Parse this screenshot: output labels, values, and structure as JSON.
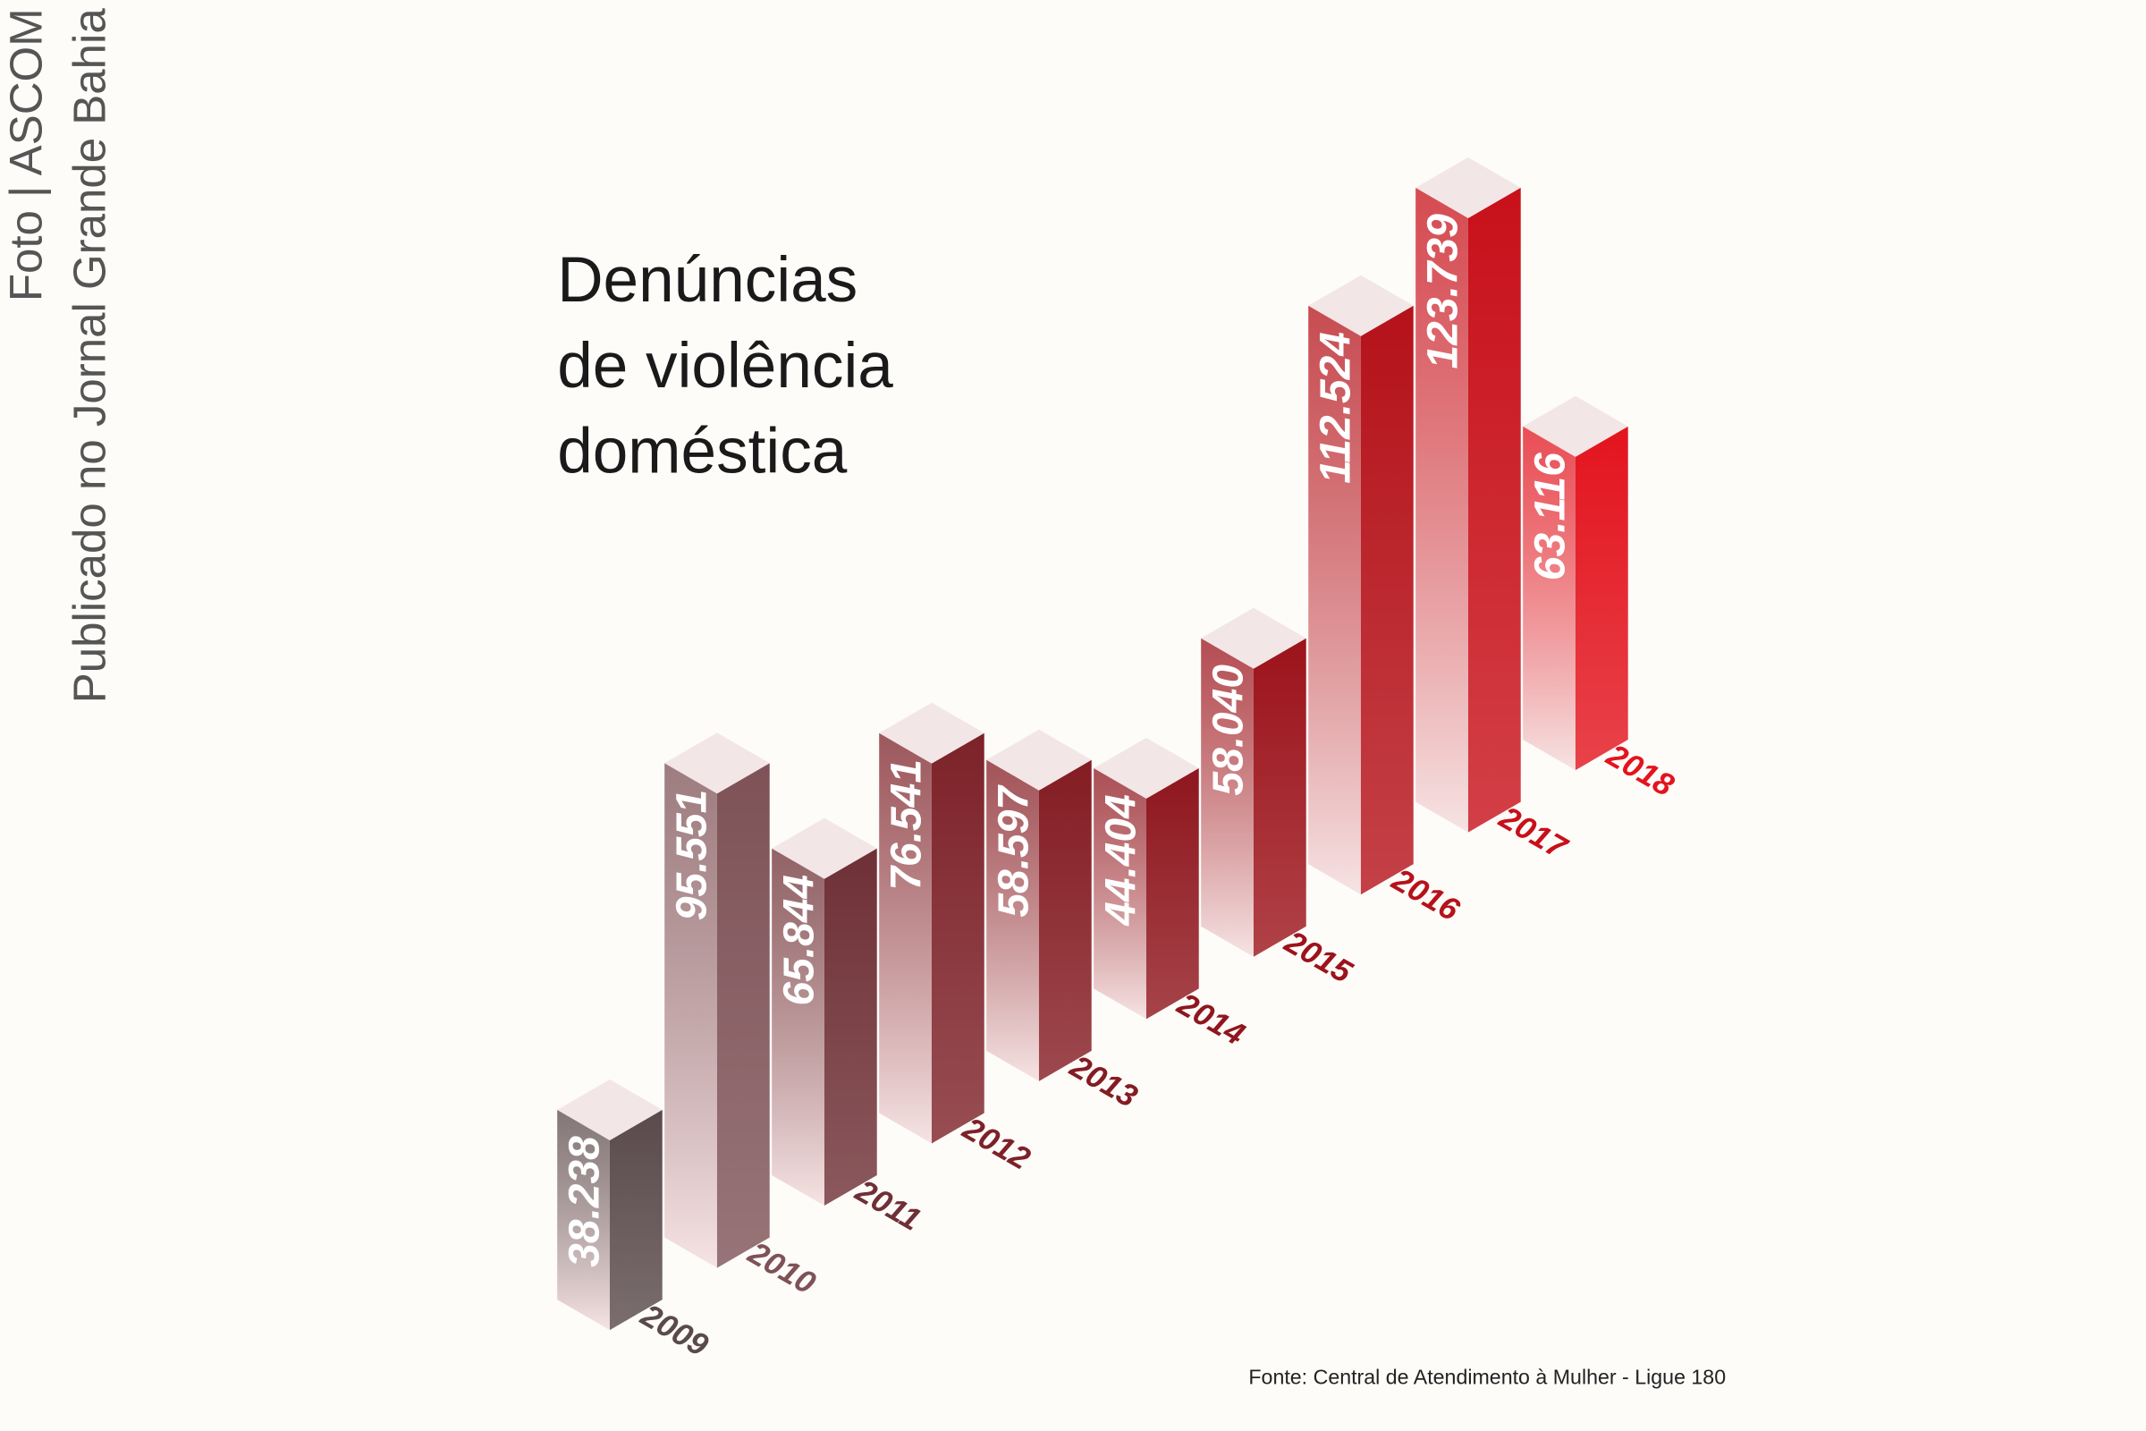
{
  "credits": [
    "Foto | ASCOM",
    "Publicado no Jornal Grande Bahia"
  ],
  "chart_data": {
    "type": "bar3d",
    "title": [
      "Denúncias",
      "de violência",
      "doméstica"
    ],
    "source": "Fonte: Central de Atendimento à Mulher - Ligue 180",
    "categories": [
      "2009",
      "2010",
      "2011",
      "2012",
      "2013",
      "2014",
      "2015",
      "2016",
      "2017",
      "2018"
    ],
    "values": [
      38238,
      95551,
      65844,
      76541,
      58597,
      44404,
      58040,
      112524,
      123739,
      63116
    ],
    "value_labels": [
      "38.238",
      "95.551",
      "65.844",
      "76.541",
      "58.597",
      "44.404",
      "58.040",
      "112.524",
      "123.739",
      "63.116"
    ],
    "colors": [
      "#5a4a4c",
      "#7e5257",
      "#6e3036",
      "#7d2229",
      "#841c23",
      "#8f161e",
      "#9c131b",
      "#b5121a",
      "#c8101a",
      "#e3141e"
    ]
  }
}
